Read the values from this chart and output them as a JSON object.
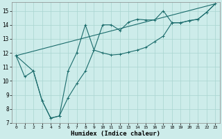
{
  "xlabel": "Humidex (Indice chaleur)",
  "background_color": "#cdecea",
  "grid_color": "#a8d4d0",
  "line_color": "#1a6b6b",
  "xlim": [
    -0.5,
    23.5
  ],
  "ylim": [
    7,
    15.6
  ],
  "yticks": [
    7,
    8,
    9,
    10,
    11,
    12,
    13,
    14,
    15
  ],
  "xticks": [
    0,
    1,
    2,
    3,
    4,
    5,
    6,
    7,
    8,
    9,
    10,
    11,
    12,
    13,
    14,
    15,
    16,
    17,
    18,
    19,
    20,
    21,
    22,
    23
  ],
  "line1_x": [
    0,
    1,
    2,
    3,
    4,
    5,
    6,
    7,
    8,
    9,
    10,
    11,
    12,
    13,
    14,
    15,
    16,
    17,
    18,
    19,
    20,
    21,
    22,
    23
  ],
  "line1_y": [
    11.8,
    10.3,
    10.7,
    8.6,
    7.35,
    7.5,
    8.8,
    9.8,
    10.7,
    12.2,
    12.0,
    11.85,
    11.9,
    12.05,
    12.2,
    12.4,
    12.8,
    13.2,
    14.15,
    14.15,
    14.3,
    14.4,
    14.9,
    15.5
  ],
  "line2_x": [
    0,
    2,
    3,
    4,
    5,
    6,
    7,
    8,
    9,
    10,
    11,
    12,
    13,
    14,
    15,
    16,
    17,
    18,
    19,
    20,
    21,
    22,
    23
  ],
  "line2_y": [
    11.8,
    10.7,
    8.6,
    7.35,
    7.5,
    10.7,
    12.0,
    14.0,
    12.2,
    14.0,
    14.0,
    13.6,
    14.2,
    14.4,
    14.35,
    14.35,
    15.0,
    14.15,
    14.15,
    14.3,
    14.4,
    14.9,
    15.5
  ],
  "line3_x": [
    0,
    23
  ],
  "line3_y": [
    11.8,
    15.5
  ]
}
